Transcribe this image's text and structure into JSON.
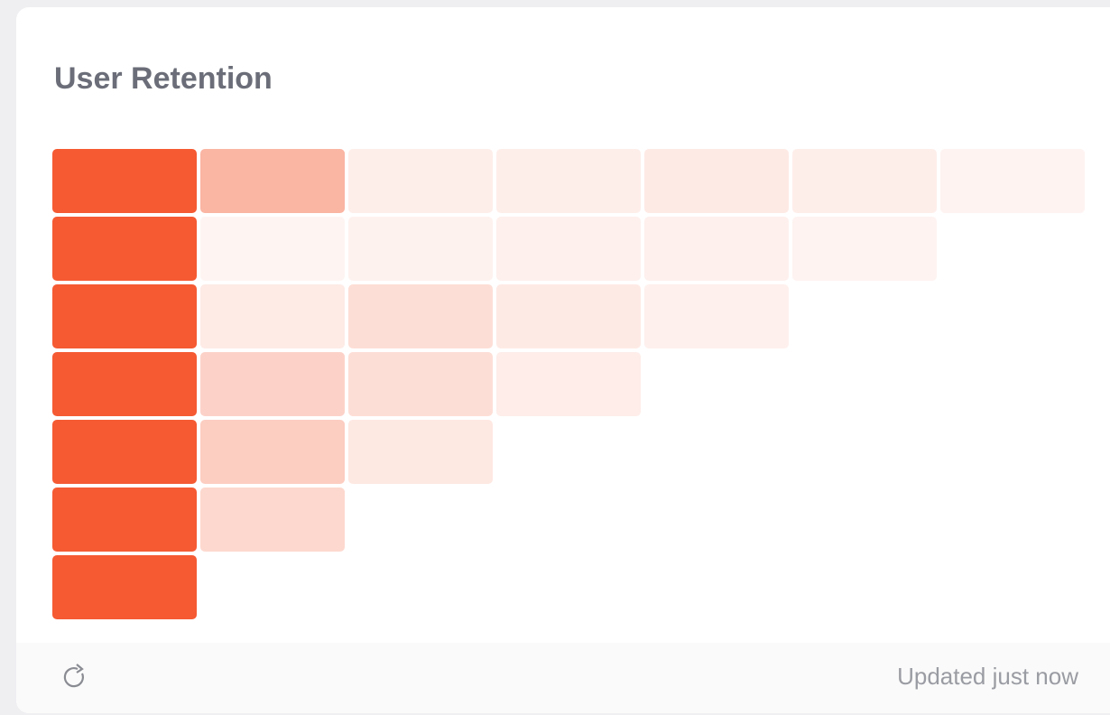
{
  "chart_data": {
    "type": "heatmap",
    "title": "User Retention",
    "values": [
      [
        100,
        45,
        10,
        10,
        13,
        10,
        7
      ],
      [
        100,
        6,
        8,
        9,
        9,
        7
      ],
      [
        100,
        12,
        20,
        13,
        9
      ],
      [
        100,
        27,
        20,
        11
      ],
      [
        100,
        30,
        14
      ],
      [
        100,
        24
      ],
      [
        100
      ]
    ],
    "vlim": [
      0,
      100
    ],
    "color": "#f55a33"
  },
  "footer": {
    "status": "Updated just now"
  }
}
